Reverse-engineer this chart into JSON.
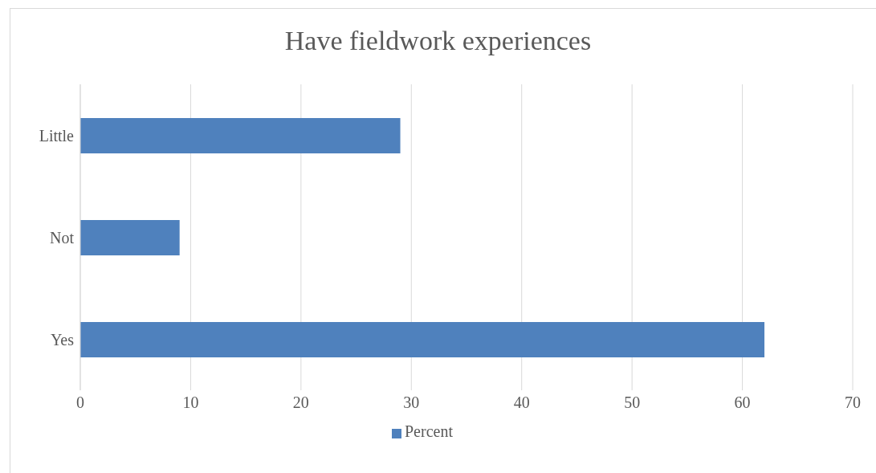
{
  "chart_data": {
    "type": "bar",
    "orientation": "horizontal",
    "title": "Have fieldwork experiences",
    "categories": [
      "Little",
      "Not",
      "Yes"
    ],
    "series": [
      {
        "name": "Percent",
        "color": "#4f81bd",
        "values": [
          29,
          9,
          62
        ]
      }
    ],
    "xlim": [
      0,
      70
    ],
    "xticks": [
      0,
      10,
      20,
      30,
      40,
      50,
      60,
      70
    ],
    "grid": "x",
    "legend": "bottom"
  }
}
